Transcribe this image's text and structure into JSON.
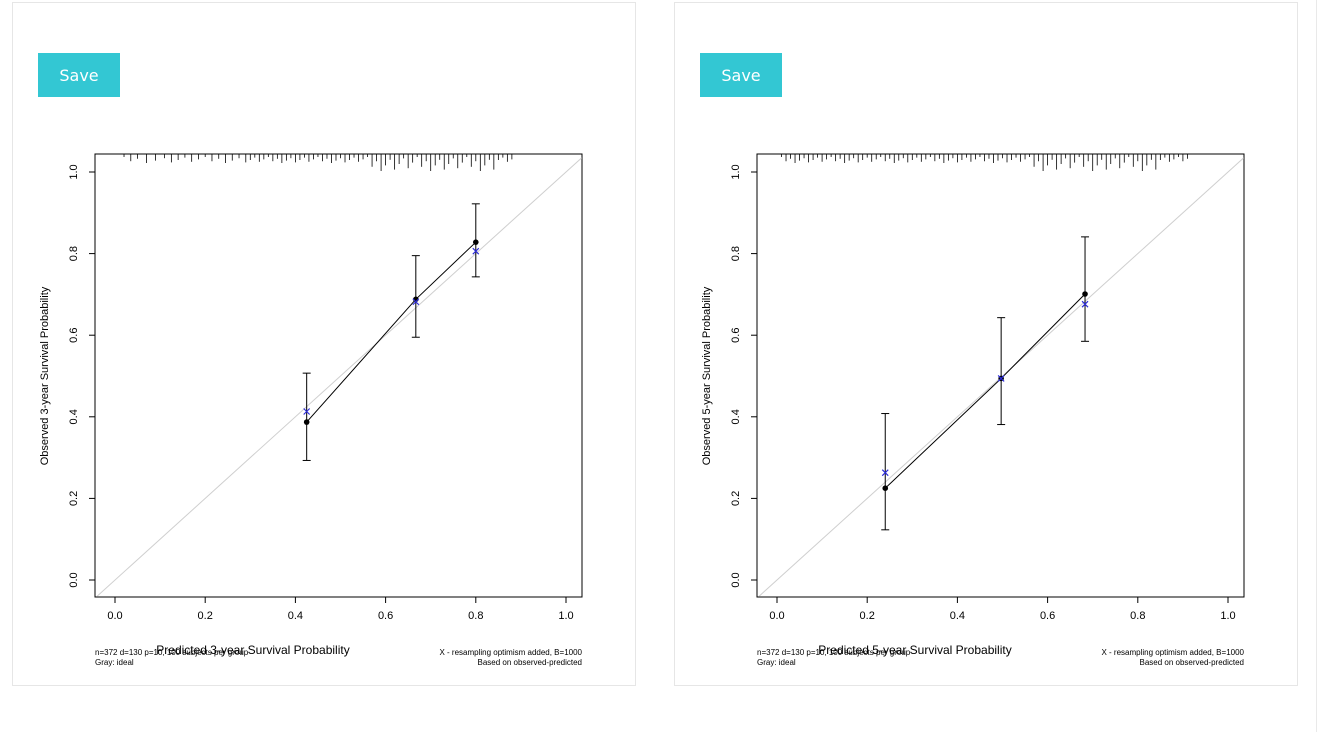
{
  "save_label": "Save",
  "chart_data": [
    {
      "type": "scatter",
      "xlabel": "Predicted 3-year Survival Probability",
      "ylabel": "Observed 3-year Survival Probability",
      "xlim": [
        0,
        1.0
      ],
      "ylim": [
        0,
        1.0
      ],
      "xticks": [
        "0.0",
        "0.2",
        "0.4",
        "0.6",
        "0.8",
        "1.0"
      ],
      "yticks": [
        "0.0",
        "0.2",
        "0.4",
        "0.6",
        "0.8",
        "1.0"
      ],
      "ideal_line": [
        [
          0,
          0
        ],
        [
          1,
          1
        ]
      ],
      "observed": {
        "x": [
          0.425,
          0.667,
          0.8
        ],
        "y": [
          0.387,
          0.688,
          0.828
        ],
        "ci_lo": [
          0.293,
          0.595,
          0.743
        ],
        "ci_hi": [
          0.507,
          0.795,
          0.922
        ]
      },
      "corrected": {
        "x": [
          0.425,
          0.667,
          0.8
        ],
        "y": [
          0.413,
          0.682,
          0.806
        ]
      },
      "rug": [
        0.02,
        0.035,
        0.05,
        0.07,
        0.09,
        0.11,
        0.125,
        0.14,
        0.155,
        0.17,
        0.185,
        0.2,
        0.215,
        0.23,
        0.245,
        0.26,
        0.275,
        0.29,
        0.3,
        0.31,
        0.32,
        0.33,
        0.34,
        0.35,
        0.36,
        0.37,
        0.38,
        0.39,
        0.4,
        0.41,
        0.42,
        0.43,
        0.44,
        0.45,
        0.46,
        0.47,
        0.48,
        0.49,
        0.5,
        0.51,
        0.52,
        0.53,
        0.54,
        0.55,
        0.56,
        0.57,
        0.58,
        0.59,
        0.6,
        0.61,
        0.62,
        0.63,
        0.64,
        0.65,
        0.66,
        0.67,
        0.68,
        0.69,
        0.7,
        0.71,
        0.72,
        0.73,
        0.74,
        0.75,
        0.76,
        0.77,
        0.78,
        0.79,
        0.8,
        0.81,
        0.82,
        0.83,
        0.84,
        0.85,
        0.86,
        0.87,
        0.88
      ],
      "footnote_left_1": "n=372 d=130 p=10, 100 subjects per group",
      "footnote_left_2": "Gray: ideal",
      "footnote_right_1": "X - resampling optimism added, B=1000",
      "footnote_right_2": "Based on observed-predicted"
    },
    {
      "type": "scatter",
      "xlabel": "Predicted 5-year Survival Probability",
      "ylabel": "Observed 5-year Survival Probability",
      "xlim": [
        0,
        1.0
      ],
      "ylim": [
        0,
        1.0
      ],
      "xticks": [
        "0.0",
        "0.2",
        "0.4",
        "0.6",
        "0.8",
        "1.0"
      ],
      "yticks": [
        "0.0",
        "0.2",
        "0.4",
        "0.6",
        "0.8",
        "1.0"
      ],
      "ideal_line": [
        [
          0,
          0
        ],
        [
          1,
          1
        ]
      ],
      "observed": {
        "x": [
          0.24,
          0.497,
          0.683
        ],
        "y": [
          0.225,
          0.494,
          0.701
        ],
        "ci_lo": [
          0.123,
          0.381,
          0.585
        ],
        "ci_hi": [
          0.408,
          0.643,
          0.841
        ]
      },
      "corrected": {
        "x": [
          0.24,
          0.497,
          0.683
        ],
        "y": [
          0.263,
          0.494,
          0.676
        ]
      },
      "rug": [
        0.01,
        0.02,
        0.03,
        0.04,
        0.05,
        0.06,
        0.07,
        0.08,
        0.09,
        0.1,
        0.11,
        0.12,
        0.13,
        0.14,
        0.15,
        0.16,
        0.17,
        0.18,
        0.19,
        0.2,
        0.21,
        0.22,
        0.23,
        0.24,
        0.25,
        0.26,
        0.27,
        0.28,
        0.29,
        0.3,
        0.31,
        0.32,
        0.33,
        0.34,
        0.35,
        0.36,
        0.37,
        0.38,
        0.39,
        0.4,
        0.41,
        0.42,
        0.43,
        0.44,
        0.45,
        0.46,
        0.47,
        0.48,
        0.49,
        0.5,
        0.51,
        0.52,
        0.53,
        0.54,
        0.55,
        0.56,
        0.57,
        0.58,
        0.59,
        0.6,
        0.61,
        0.62,
        0.63,
        0.64,
        0.65,
        0.66,
        0.67,
        0.68,
        0.69,
        0.7,
        0.71,
        0.72,
        0.73,
        0.74,
        0.75,
        0.76,
        0.77,
        0.78,
        0.79,
        0.8,
        0.81,
        0.82,
        0.83,
        0.84,
        0.85,
        0.86,
        0.87,
        0.88,
        0.89,
        0.9,
        0.91
      ],
      "footnote_left_1": "n=372 d=130 p=10, 100 subjects per group",
      "footnote_left_2": "Gray: ideal",
      "footnote_right_1": "X - resampling optimism added, B=1000",
      "footnote_right_2": "Based on observed-predicted"
    }
  ]
}
